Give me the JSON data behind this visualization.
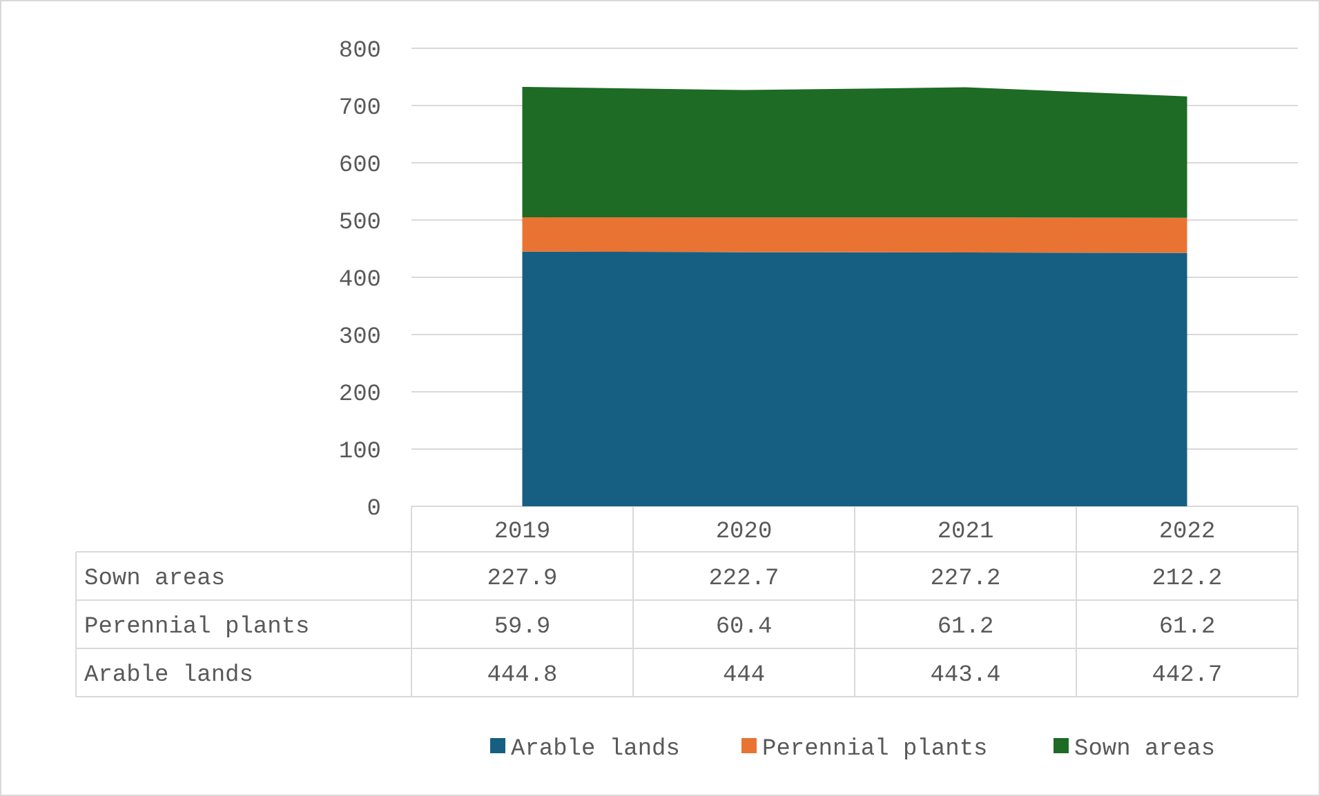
{
  "chart_data": {
    "type": "area",
    "stacked": true,
    "categories": [
      "2019",
      "2020",
      "2021",
      "2022"
    ],
    "series": [
      {
        "name": "Arable lands",
        "color": "#175f82",
        "values": [
          444.8,
          444,
          443.4,
          442.7
        ]
      },
      {
        "name": "Perennial plants",
        "color": "#e97333",
        "values": [
          59.9,
          60.4,
          61.2,
          61.2
        ]
      },
      {
        "name": "Sown areas",
        "color": "#1d6b25",
        "values": [
          227.9,
          222.7,
          227.2,
          212.2
        ]
      }
    ],
    "ylim": [
      0,
      800
    ],
    "yticks": [
      0,
      100,
      200,
      300,
      400,
      500,
      600,
      700,
      800
    ],
    "grid": "y",
    "legend": "bottom",
    "data_labels": true
  }
}
